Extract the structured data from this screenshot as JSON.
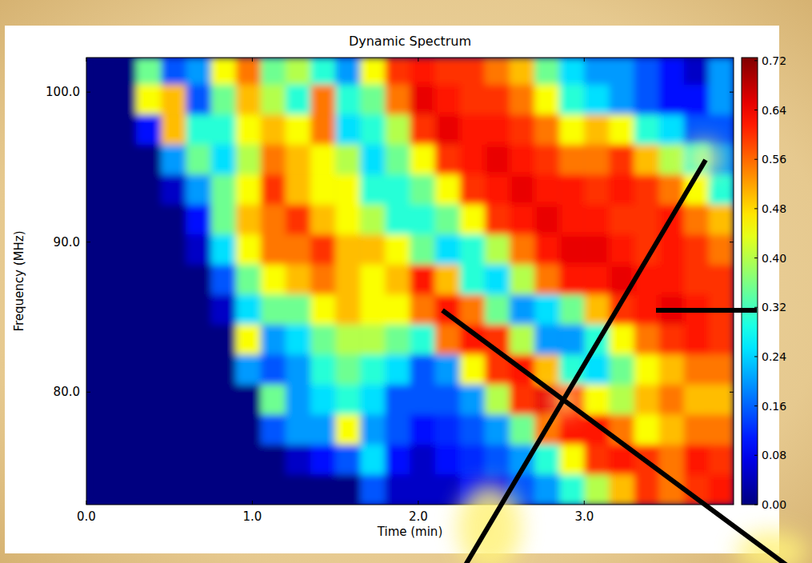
{
  "chart_data": {
    "type": "heatmap",
    "title": "Dynamic Spectrum",
    "x_label": "Time (min)",
    "y_label": "Frequency (MHz)",
    "xlim": [
      0,
      3.9
    ],
    "ylim": [
      72.5,
      102.3
    ],
    "xticks": [
      {
        "value": 0,
        "label": "0.0"
      },
      {
        "value": 1,
        "label": "1.0"
      },
      {
        "value": 2,
        "label": "2.0"
      },
      {
        "value": 3,
        "label": "3.0"
      }
    ],
    "yticks": [
      {
        "value": 80,
        "label": "80.0"
      },
      {
        "value": 90,
        "label": "90.0"
      },
      {
        "value": 100,
        "label": "100.0"
      }
    ],
    "time_edges": [
      0,
      0.15,
      0.3,
      0.45,
      0.6,
      0.75,
      0.9,
      1.05,
      1.2,
      1.35,
      1.5,
      1.65,
      1.8,
      1.95,
      2.1,
      2.25,
      2.4,
      2.55,
      2.7,
      2.85,
      3.0,
      3.15,
      3.3,
      3.45,
      3.6,
      3.75,
      3.9
    ],
    "freq_edges": [
      102.3,
      100.5,
      98.5,
      96.5,
      94.5,
      92.5,
      90.5,
      88.5,
      86.5,
      84.5,
      82.5,
      80.5,
      78.5,
      76.5,
      74.5,
      72.5
    ],
    "cells": [
      [
        0,
        0,
        0.35,
        0.15,
        0.2,
        0.45,
        0.55,
        0.35,
        0.4,
        0.3,
        0.2,
        0.45,
        0.6,
        0.62,
        0.6,
        0.6,
        0.55,
        0.5,
        0.35,
        0.25,
        0.2,
        0.2,
        0.15,
        0.1,
        0.05,
        0.2
      ],
      [
        0,
        0,
        0.45,
        0.5,
        0.15,
        0.35,
        0.5,
        0.4,
        0.3,
        0.55,
        0.3,
        0.35,
        0.55,
        0.65,
        0.62,
        0.6,
        0.6,
        0.55,
        0.45,
        0.3,
        0.25,
        0.2,
        0.15,
        0.1,
        0.1,
        0.2
      ],
      [
        0,
        0,
        0.1,
        0.5,
        0.3,
        0.3,
        0.45,
        0.5,
        0.45,
        0.55,
        0.25,
        0.3,
        0.4,
        0.6,
        0.65,
        0.62,
        0.62,
        0.6,
        0.55,
        0.45,
        0.5,
        0.45,
        0.3,
        0.25,
        0.15,
        0.15
      ],
      [
        0,
        0,
        0,
        0.2,
        0.35,
        0.25,
        0.4,
        0.55,
        0.5,
        0.45,
        0.4,
        0.25,
        0.35,
        0.45,
        0.6,
        0.62,
        0.65,
        0.62,
        0.6,
        0.55,
        0.55,
        0.6,
        0.5,
        0.4,
        0.3,
        0.2
      ],
      [
        0,
        0,
        0,
        0.05,
        0.2,
        0.35,
        0.45,
        0.6,
        0.5,
        0.45,
        0.45,
        0.3,
        0.3,
        0.35,
        0.45,
        0.6,
        0.62,
        0.65,
        0.62,
        0.62,
        0.6,
        0.62,
        0.6,
        0.55,
        0.45,
        0.3
      ],
      [
        0,
        0,
        0,
        0,
        0.1,
        0.35,
        0.5,
        0.55,
        0.6,
        0.5,
        0.45,
        0.4,
        0.3,
        0.3,
        0.35,
        0.45,
        0.6,
        0.62,
        0.65,
        0.62,
        0.62,
        0.6,
        0.6,
        0.62,
        0.55,
        0.5
      ],
      [
        0,
        0,
        0,
        0,
        0.05,
        0.25,
        0.45,
        0.55,
        0.55,
        0.6,
        0.5,
        0.5,
        0.45,
        0.35,
        0.25,
        0.3,
        0.4,
        0.55,
        0.62,
        0.65,
        0.65,
        0.62,
        0.6,
        0.62,
        0.6,
        0.55
      ],
      [
        0,
        0,
        0,
        0,
        0,
        0.15,
        0.35,
        0.45,
        0.5,
        0.55,
        0.5,
        0.45,
        0.5,
        0.62,
        0.5,
        0.3,
        0.25,
        0.4,
        0.55,
        0.62,
        0.62,
        0.65,
        0.62,
        0.62,
        0.6,
        0.6
      ],
      [
        0,
        0,
        0,
        0,
        0,
        0.05,
        0.25,
        0.35,
        0.35,
        0.45,
        0.5,
        0.45,
        0.45,
        0.55,
        0.62,
        0.55,
        0.35,
        0.2,
        0.25,
        0.35,
        0.5,
        0.6,
        0.62,
        0.65,
        0.62,
        0.6
      ],
      [
        0,
        0,
        0,
        0,
        0,
        0,
        0.45,
        0.2,
        0.25,
        0.35,
        0.4,
        0.4,
        0.35,
        0.3,
        0.55,
        0.62,
        0.6,
        0.4,
        0.2,
        0.2,
        0.3,
        0.45,
        0.55,
        0.6,
        0.62,
        0.6
      ],
      [
        0,
        0,
        0,
        0,
        0,
        0,
        0.2,
        0.15,
        0.2,
        0.3,
        0.35,
        0.3,
        0.25,
        0.15,
        0.2,
        0.45,
        0.6,
        0.62,
        0.5,
        0.3,
        0.25,
        0.35,
        0.45,
        0.5,
        0.55,
        0.55
      ],
      [
        0,
        0,
        0,
        0,
        0,
        0,
        0,
        0.35,
        0.2,
        0.25,
        0.3,
        0.25,
        0.15,
        0.15,
        0.15,
        0.2,
        0.4,
        0.6,
        0.65,
        0.6,
        0.45,
        0.4,
        0.5,
        0.55,
        0.5,
        0.5
      ],
      [
        0,
        0,
        0,
        0,
        0,
        0,
        0,
        0.15,
        0.2,
        0.2,
        0.45,
        0.2,
        0.15,
        0.1,
        0.12,
        0.15,
        0.2,
        0.35,
        0.55,
        0.62,
        0.62,
        0.55,
        0.45,
        0.5,
        0.55,
        0.55
      ],
      [
        0,
        0,
        0,
        0,
        0,
        0,
        0,
        0,
        0.05,
        0.1,
        0.15,
        0.25,
        0.1,
        0.05,
        0.1,
        0.12,
        0.15,
        0.2,
        0.3,
        0.45,
        0.6,
        0.62,
        0.6,
        0.55,
        0.62,
        0.6
      ],
      [
        0,
        0,
        0,
        0,
        0,
        0,
        0,
        0,
        0,
        0,
        0,
        0.15,
        0.05,
        0.05,
        0.05,
        0.1,
        0.1,
        0.15,
        0.2,
        0.3,
        0.4,
        0.5,
        0.6,
        0.55,
        0.6,
        0.62
      ]
    ],
    "colorbar": {
      "lim": [
        0,
        0.725
      ],
      "ticks": [
        {
          "value": 0,
          "label": "0.00"
        },
        0.08,
        0.16,
        0.24,
        {
          "value": 0.32,
          "label": "0.32"
        },
        {
          "value": 0.4,
          "label": "0.40"
        },
        0.48,
        0.56,
        0.64,
        0.72
      ]
    }
  }
}
